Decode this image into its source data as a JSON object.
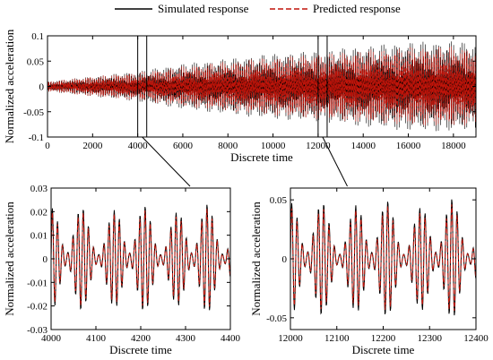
{
  "legend": {
    "simulated_label": "Simulated response",
    "predicted_label": "Predicted response",
    "simulated_color": "#000000",
    "predicted_color": "#c0140a"
  },
  "chart_data": [
    {
      "type": "line",
      "panel": "main",
      "title": "",
      "xlabel": "Discrete time",
      "ylabel": "Normalized acceleration",
      "xlim": [
        0,
        19000
      ],
      "ylim": [
        -0.1,
        0.1
      ],
      "xticks": [
        0,
        2000,
        4000,
        6000,
        8000,
        10000,
        12000,
        14000,
        16000,
        18000
      ],
      "yticks": [
        -0.1,
        -0.05,
        0,
        0.05,
        0.1
      ],
      "ytick_labels": [
        "-0.1",
        "-0.05",
        "0",
        "0.05",
        "0.1"
      ],
      "zoom_windows": [
        [
          4000,
          4400
        ],
        [
          12000,
          12400
        ]
      ],
      "series": [
        {
          "name": "Simulated response",
          "x": [
            0,
            2000,
            4000,
            6000,
            8000,
            10000,
            12000,
            14000,
            16000,
            18000,
            19000
          ],
          "envelope": [
            0.01,
            0.02,
            0.03,
            0.045,
            0.055,
            0.065,
            0.07,
            0.08,
            0.088,
            0.09,
            0.085
          ]
        },
        {
          "name": "Predicted response",
          "x": [
            0,
            2000,
            4000,
            6000,
            8000,
            10000,
            12000,
            14000,
            16000,
            18000,
            19000
          ],
          "envelope": [
            0.01,
            0.02,
            0.028,
            0.04,
            0.05,
            0.058,
            0.065,
            0.072,
            0.078,
            0.08,
            0.076
          ]
        }
      ]
    },
    {
      "type": "line",
      "panel": "zoom-left",
      "xlabel": "Discrete time",
      "ylabel": "Normalized acceleration",
      "xlim": [
        4000,
        4400
      ],
      "ylim": [
        -0.03,
        0.03
      ],
      "xticks": [
        4000,
        4100,
        4200,
        4300,
        4400
      ],
      "yticks": [
        -0.03,
        -0.02,
        -0.01,
        0,
        0.01,
        0.02,
        0.03
      ],
      "ytick_labels": [
        "-0.03",
        "-0.02",
        "-0.01",
        "0",
        "0.01",
        "0.02",
        "0.03"
      ],
      "series": [
        {
          "name": "Simulated response",
          "peak_amplitude": 0.025
        },
        {
          "name": "Predicted response",
          "peak_amplitude": 0.023
        }
      ]
    },
    {
      "type": "line",
      "panel": "zoom-right",
      "xlabel": "Discrete time",
      "ylabel": "Normalized acceleration",
      "xlim": [
        12000,
        12400
      ],
      "ylim": [
        -0.06,
        0.06
      ],
      "xticks": [
        12000,
        12100,
        12200,
        12300,
        12400
      ],
      "yticks": [
        -0.05,
        0,
        0.05
      ],
      "ytick_labels": [
        "-0.05",
        "0",
        "0.05"
      ],
      "series": [
        {
          "name": "Simulated response",
          "peak_amplitude": 0.055
        },
        {
          "name": "Predicted response",
          "peak_amplitude": 0.05
        }
      ]
    }
  ]
}
